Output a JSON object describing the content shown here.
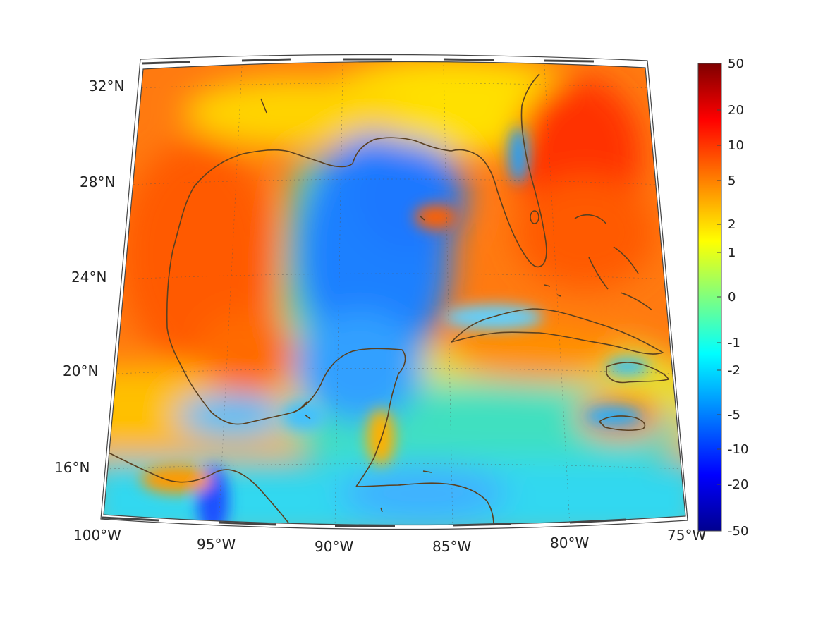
{
  "lat_labels": [
    "32°N",
    "28°N",
    "24°N",
    "20°N",
    "16°N"
  ],
  "lon_labels": [
    "100°W",
    "95°W",
    "90°W",
    "85°W",
    "80°W",
    "75°W"
  ],
  "colorbar": {
    "ticks": [
      "50",
      "20",
      "10",
      "5",
      "2",
      "1",
      "0",
      "-1",
      "-2",
      "-5",
      "-10",
      "-20",
      "-50"
    ],
    "colors": [
      "#7f0000",
      "#ff0000",
      "#ff8000",
      "#ffff00",
      "#00ffff",
      "#0000ff",
      "#00008f"
    ]
  },
  "coastline_color": "#5a4020"
}
